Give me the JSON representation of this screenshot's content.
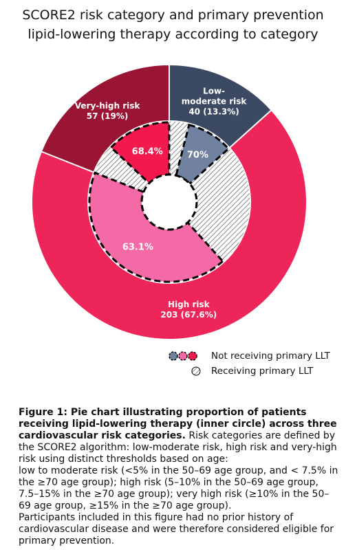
{
  "chart_data": {
    "type": "nested-pie",
    "title": "SCORE2 risk category and primary prevention lipid-lowering therapy according to category",
    "categories": [
      "Low-moderate risk",
      "High risk",
      "Very-high risk"
    ],
    "values": [
      40,
      203,
      57
    ],
    "value_labels": [
      "40 (13.3%)",
      "203 (67.6%)",
      "57 (19%)"
    ],
    "colors": [
      "#3b4963",
      "#ee2558",
      "#9a1533"
    ],
    "inner": {
      "values": [
        70,
        63.1,
        68.4
      ],
      "value_labels": [
        "70%",
        "63.1%",
        "68.4%"
      ],
      "colors": [
        "#7181a0",
        "#f46aa6",
        "#f2194f"
      ]
    },
    "legend": [
      "Not receiving primary LLT",
      "Receiving primary LLT"
    ]
  },
  "caption": {
    "bold": "Figure 1: Pie chart illustrating proportion of patients receiving lipid-lowering therapy (inner circle) across three cardiovascular risk categories.",
    "text": "Risk categories are defined by the SCORE2 algorithm: low-moderate risk, high risk and very-high risk using distinct thresholds based on age:",
    "paragraphs": [
      "low to moderate risk (<5% in the 50–69 age group, and < 7.5% in the ≥70 age group); high risk (5–10% in the 50–69 age group, 7.5–15% in the ≥70 age group); very high risk (≥10% in the 50–69 age group, ≥15% in the ≥70 age group).",
      "Participants included in this figure had no prior history of cardiovascular disease and were therefore considered eligible for primary prevention."
    ]
  }
}
